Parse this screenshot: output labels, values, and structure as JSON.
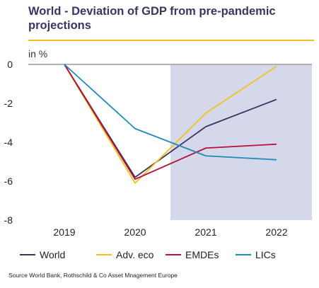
{
  "title": "World - Deviation of GDP from pre-pandemic projections",
  "unit_label": "in %",
  "source": "Source World Bank, Rothschild & Co Asset Mnagement Europe",
  "colors": {
    "title": "#3d3462",
    "title_rule": "#f2c21a",
    "shade": "#d5d8ea",
    "zero_line": "#9a9a9a"
  },
  "chart_data": {
    "type": "line",
    "title": "World - Deviation of GDP from pre-pandemic projections",
    "ylabel": "in %",
    "x": [
      "2019",
      "2020",
      "2021",
      "2022"
    ],
    "ylim": [
      -8,
      0
    ],
    "yticks": [
      "0",
      "-2",
      "-4",
      "-6",
      "-8"
    ],
    "grid": false,
    "legend_position": "bottom",
    "shaded_region": {
      "from": "2020.5",
      "to": "2022.5"
    },
    "series": [
      {
        "name": "World",
        "color": "#3d3462",
        "values": [
          0,
          -5.8,
          -3.2,
          -1.8
        ]
      },
      {
        "name": "Adv. eco",
        "color": "#f2c21a",
        "values": [
          0,
          -6.1,
          -2.5,
          -0.1
        ]
      },
      {
        "name": "EMDEs",
        "color": "#b5123e",
        "values": [
          0,
          -5.9,
          -4.3,
          -4.1
        ]
      },
      {
        "name": "LICs",
        "color": "#1f8ab8",
        "values": [
          0,
          -3.3,
          -4.7,
          -4.9
        ]
      }
    ]
  }
}
